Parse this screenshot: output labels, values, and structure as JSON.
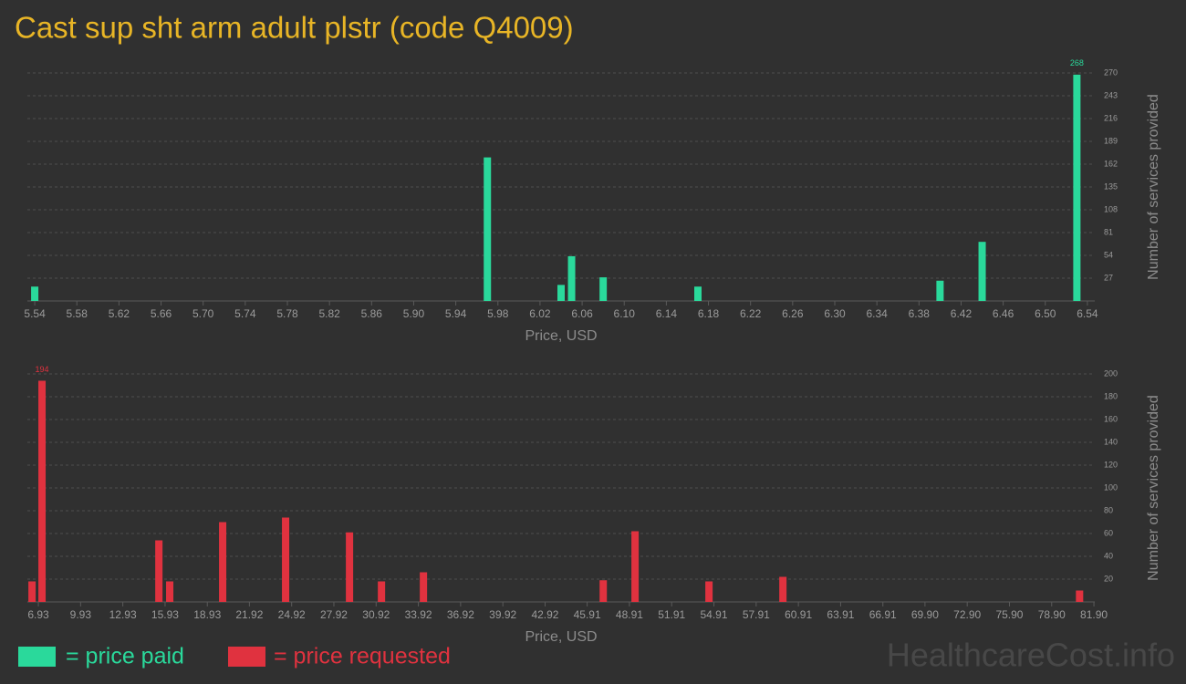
{
  "title": "Cast sup sht arm adult plstr (code Q4009)",
  "watermark": "HealthcareCost.info",
  "chart_data": [
    {
      "type": "bar",
      "x_label": "Price, USD",
      "y_label": "Number of services provided",
      "x": [
        5.54,
        5.97,
        6.04,
        6.05,
        6.08,
        6.17,
        6.4,
        6.44,
        6.53
      ],
      "series": [
        {
          "name": "= price paid",
          "color": "#2ad99b",
          "values": [
            17,
            170,
            19,
            53,
            28,
            17,
            24,
            70,
            268
          ]
        }
      ],
      "xlim": [
        5.533,
        6.547
      ],
      "xticks": [
        5.54,
        5.58,
        5.62,
        5.66,
        {
          "value": 5.7,
          "label": "5.70"
        },
        5.74,
        5.78,
        5.82,
        5.86,
        {
          "value": 5.9,
          "label": "5.90"
        },
        5.94,
        5.98,
        6.02,
        6.06,
        {
          "value": 6.1,
          "label": "6.10"
        },
        6.14,
        6.18,
        6.22,
        6.26,
        {
          "value": 6.3,
          "label": "6.30"
        },
        6.34,
        6.38,
        6.42,
        6.46,
        {
          "value": 6.5,
          "label": "6.50"
        },
        6.54
      ],
      "ylim": [
        0,
        270
      ],
      "yticks": [
        27,
        54,
        81,
        108,
        135,
        162,
        189,
        216,
        243,
        270
      ],
      "grid": true
    },
    {
      "type": "bar",
      "x_label": "Price, USD",
      "y_label": "Number of services provided",
      "x": [
        6.48,
        7.19,
        15.49,
        16.26,
        20.02,
        24.49,
        29.03,
        31.3,
        34.28,
        47.05,
        49.31,
        54.56,
        59.81,
        80.88
      ],
      "series": [
        {
          "name": "= price requested",
          "color": "#e0323f",
          "values": [
            18,
            194,
            54,
            18,
            70,
            74,
            61,
            18,
            26,
            19,
            62,
            18,
            22,
            10
          ]
        }
      ],
      "xlim": [
        6.15,
        81.96
      ],
      "xticks": [
        6.93,
        9.93,
        12.93,
        15.93,
        18.93,
        21.92,
        24.92,
        27.92,
        30.92,
        33.92,
        36.92,
        39.92,
        42.92,
        45.91,
        48.91,
        51.91,
        54.91,
        57.91,
        60.91,
        63.91,
        66.91,
        {
          "value": 69.9,
          "label": "69.90"
        },
        {
          "value": 72.9,
          "label": "72.90"
        },
        {
          "value": 75.9,
          "label": "75.90"
        },
        {
          "value": 78.9,
          "label": "78.90"
        },
        {
          "value": 81.9,
          "label": "81.90"
        }
      ],
      "ylim": [
        0,
        200
      ],
      "yticks": [
        20,
        40,
        60,
        80,
        100,
        120,
        140,
        160,
        180,
        200
      ],
      "grid": true
    }
  ]
}
